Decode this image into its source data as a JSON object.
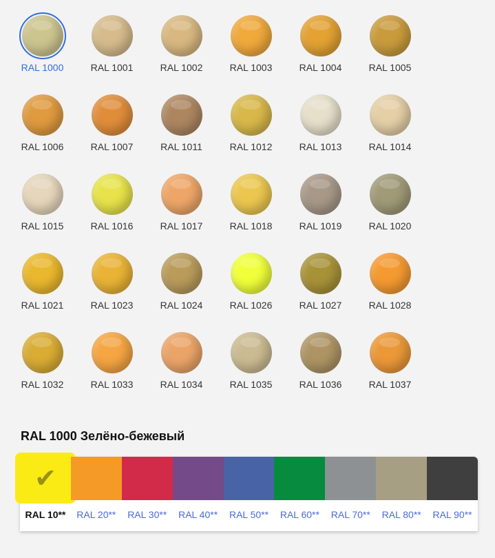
{
  "colors": [
    {
      "label": "RAL 1000",
      "color": "#cdc58f",
      "selected": true
    },
    {
      "label": "RAL 1001",
      "color": "#d6bb8c"
    },
    {
      "label": "RAL 1002",
      "color": "#d8b880"
    },
    {
      "label": "RAL 1003",
      "color": "#f0a93b"
    },
    {
      "label": "RAL 1004",
      "color": "#e3a232"
    },
    {
      "label": "RAL 1005",
      "color": "#c99b3c"
    },
    {
      "label": "RAL 1006",
      "color": "#e09a3f"
    },
    {
      "label": "RAL 1007",
      "color": "#e08d3a"
    },
    {
      "label": "RAL 1011",
      "color": "#ad8660"
    },
    {
      "label": "RAL 1012",
      "color": "#d8b84a"
    },
    {
      "label": "RAL 1013",
      "color": "#e6dfca"
    },
    {
      "label": "RAL 1014",
      "color": "#e4cfa6"
    },
    {
      "label": "RAL 1015",
      "color": "#e6d6bb"
    },
    {
      "label": "RAL 1016",
      "color": "#e8e34a"
    },
    {
      "label": "RAL 1017",
      "color": "#eea668"
    },
    {
      "label": "RAL 1018",
      "color": "#ecc74f"
    },
    {
      "label": "RAL 1019",
      "color": "#a89888"
    },
    {
      "label": "RAL 1020",
      "color": "#a09a78"
    },
    {
      "label": "RAL 1021",
      "color": "#eab82e"
    },
    {
      "label": "RAL 1023",
      "color": "#eab335"
    },
    {
      "label": "RAL 1024",
      "color": "#b99b5a"
    },
    {
      "label": "RAL 1026",
      "color": "#f0ff3a"
    },
    {
      "label": "RAL 1027",
      "color": "#a89238"
    },
    {
      "label": "RAL 1028",
      "color": "#f59a30"
    },
    {
      "label": "RAL 1032",
      "color": "#d9ac34"
    },
    {
      "label": "RAL 1033",
      "color": "#f5a542"
    },
    {
      "label": "RAL 1034",
      "color": "#eba468"
    },
    {
      "label": "RAL 1035",
      "color": "#cbbb92"
    },
    {
      "label": "RAL 1036",
      "color": "#ae9464"
    },
    {
      "label": "RAL 1037",
      "color": "#eb9838"
    }
  ],
  "selected_title": "RAL 1000 Зелёно-бежевый",
  "palette": [
    {
      "label": "RAL 10**",
      "color": "#fbeb15",
      "selected": true,
      "icon": "checkmark-icon",
      "icon_glyph": "✔"
    },
    {
      "label": "RAL 20**",
      "color": "#f59a26"
    },
    {
      "label": "RAL 30**",
      "color": "#d22b4a"
    },
    {
      "label": "RAL 40**",
      "color": "#744b88"
    },
    {
      "label": "RAL 50**",
      "color": "#4964a6"
    },
    {
      "label": "RAL 60**",
      "color": "#078b3e"
    },
    {
      "label": "RAL 70**",
      "color": "#8e9193"
    },
    {
      "label": "RAL 80**",
      "color": "#a69f83"
    },
    {
      "label": "RAL 90**",
      "color": "#3f3f3f"
    }
  ]
}
